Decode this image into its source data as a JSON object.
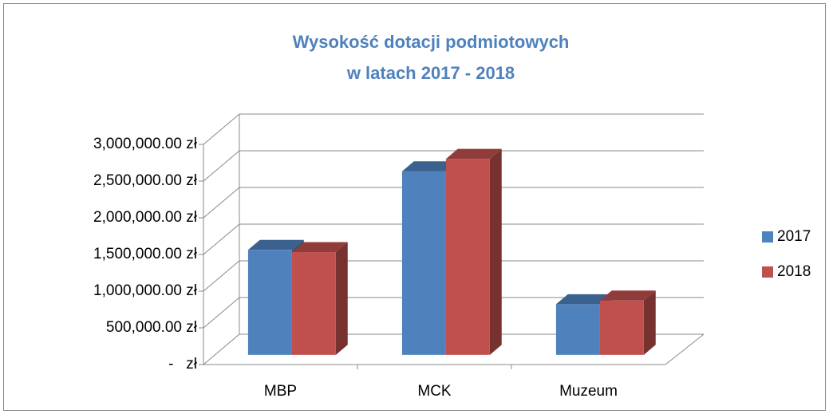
{
  "chart_data": {
    "type": "bar3d",
    "title": [
      "Wysokość dotacji podmiotowych",
      "w latach 2017 - 2018"
    ],
    "categories": [
      "MBP",
      "MCK",
      "Muzeum"
    ],
    "series": [
      {
        "name": "2017",
        "color": "#4f81bd",
        "values": [
          1430000,
          2500000,
          690000
        ]
      },
      {
        "name": "2018",
        "color": "#c0504d",
        "values": [
          1400000,
          2670000,
          740000
        ]
      }
    ],
    "ylim": [
      0,
      3000000
    ],
    "yticks": [
      {
        "value": 0,
        "label": "-   zł"
      },
      {
        "value": 500000,
        "label": "500,000.00 zł"
      },
      {
        "value": 1000000,
        "label": "1,000,000.00 zł"
      },
      {
        "value": 1500000,
        "label": "1,500,000.00 zł"
      },
      {
        "value": 2000000,
        "label": "2,000,000.00 zł"
      },
      {
        "value": 2500000,
        "label": "2,500,000.00 zł"
      },
      {
        "value": 3000000,
        "label": "3,000,000.00 zł"
      }
    ],
    "grid": true,
    "legend": "right"
  }
}
